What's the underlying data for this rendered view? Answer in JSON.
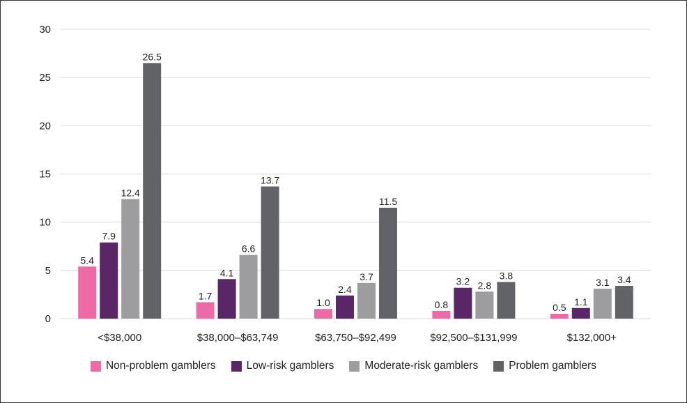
{
  "chart_data": {
    "type": "bar",
    "categories": [
      "<$38,000",
      "$38,000–$63,749",
      "$63,750–$92,499",
      "$92,500–$131,999",
      "$132,000+"
    ],
    "series": [
      {
        "name": "Non-problem gamblers",
        "color": "#ee6aa7",
        "values": [
          5.4,
          1.7,
          1.0,
          0.8,
          0.5
        ],
        "labels": [
          "5.4",
          "1.7",
          "1.0",
          "0.8",
          "0.5"
        ]
      },
      {
        "name": "Low-risk gamblers",
        "color": "#5b2668",
        "values": [
          7.9,
          4.1,
          2.4,
          3.2,
          1.1
        ],
        "labels": [
          "7.9",
          "4.1",
          "2.4",
          "3.2",
          "1.1"
        ]
      },
      {
        "name": "Moderate-risk gamblers",
        "color": "#9d9c9f",
        "values": [
          12.4,
          6.6,
          3.7,
          2.8,
          3.1
        ],
        "labels": [
          "12.4",
          "6.6",
          "3.7",
          "2.8",
          "3.1"
        ]
      },
      {
        "name": "Problem gamblers",
        "color": "#626366",
        "values": [
          26.5,
          13.7,
          11.5,
          3.8,
          3.4
        ],
        "labels": [
          "26.5",
          "13.7",
          "11.5",
          "3.8",
          "3.4"
        ]
      }
    ],
    "ylim": [
      0,
      30
    ],
    "yticks": [
      0,
      5,
      10,
      15,
      20,
      25,
      30
    ],
    "grid": true,
    "legend_position": "bottom",
    "title": "",
    "xlabel": "",
    "ylabel": ""
  }
}
